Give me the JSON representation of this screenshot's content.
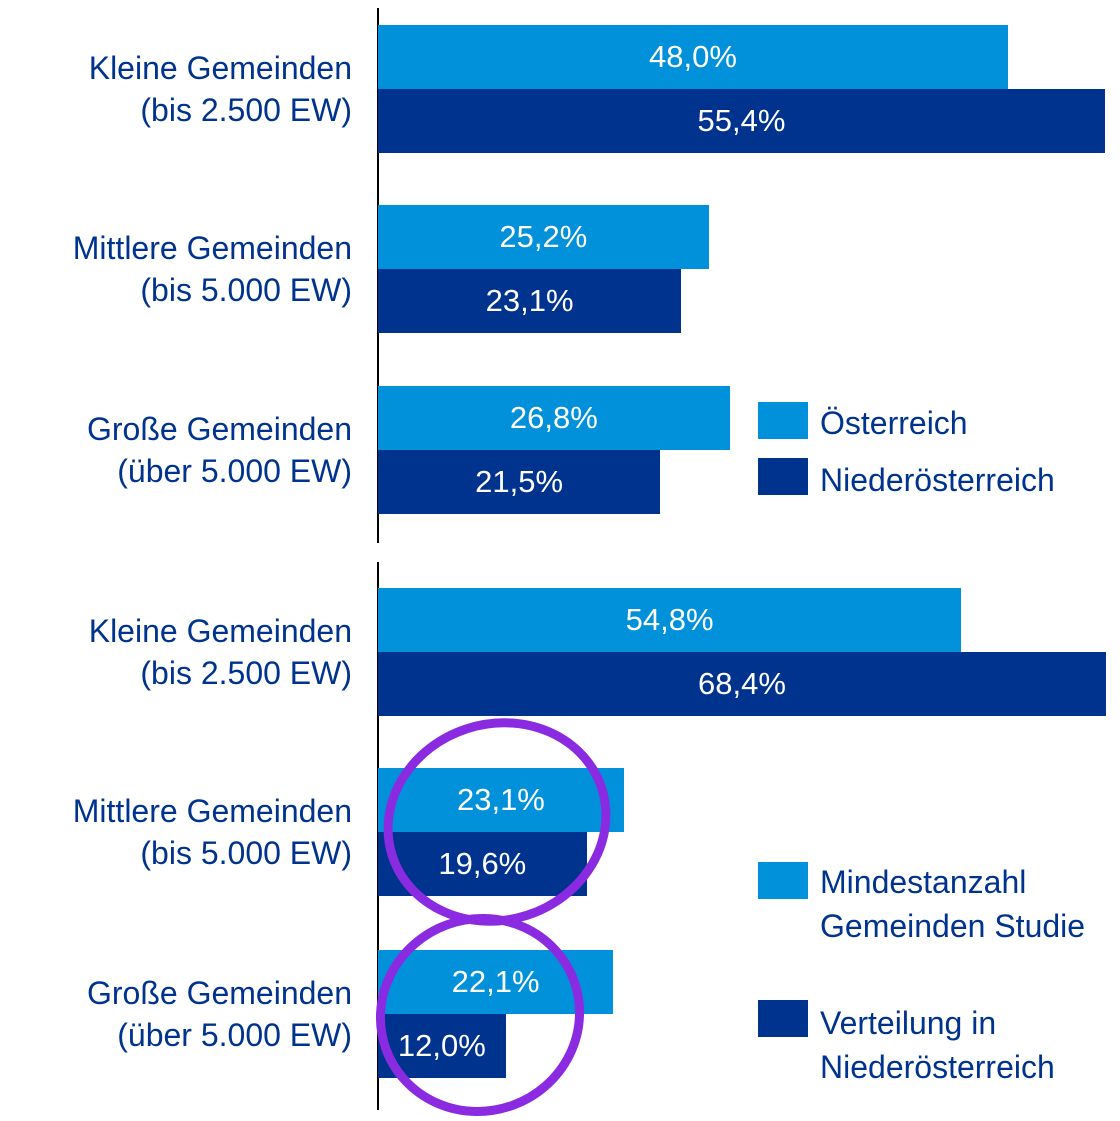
{
  "chart_data": [
    {
      "type": "barh",
      "categories": [
        [
          "Kleine Gemeinden",
          "(bis 2.500 EW)"
        ],
        [
          "Mittlere Gemeinden",
          "(bis 5.000 EW)"
        ],
        [
          "Große Gemeinden",
          "(über 5.000 EW)"
        ]
      ],
      "series": [
        {
          "name": "Österreich",
          "color": "#0091da",
          "values": [
            48.0,
            25.2,
            26.8
          ],
          "value_labels": [
            "48,0%",
            "25,2%",
            "26,8%"
          ]
        },
        {
          "name": "Niederösterreich",
          "color": "#00338d",
          "values": [
            55.4,
            23.1,
            21.5
          ],
          "value_labels": [
            "55,4%",
            "23,1%",
            "21,5%"
          ]
        }
      ],
      "xlim": [
        0,
        55.4
      ]
    },
    {
      "type": "barh",
      "categories": [
        [
          "Kleine Gemeinden",
          "(bis 2.500 EW)"
        ],
        [
          "Mittlere Gemeinden",
          "(bis 5.000 EW)"
        ],
        [
          "Große Gemeinden",
          "(über 5.000 EW)"
        ]
      ],
      "series": [
        {
          "name": "Mindestanzahl Gemeinden Studie",
          "color": "#0091da",
          "values": [
            54.8,
            23.1,
            22.1
          ],
          "value_labels": [
            "54,8%",
            "23,1%",
            "22,1%"
          ]
        },
        {
          "name": "Verteilung in Niederösterreich",
          "color": "#00338d",
          "values": [
            68.4,
            19.6,
            12.0
          ],
          "value_labels": [
            "68,4%",
            "19,6%",
            "12,0%"
          ]
        }
      ],
      "xlim": [
        0,
        68.4
      ]
    }
  ]
}
